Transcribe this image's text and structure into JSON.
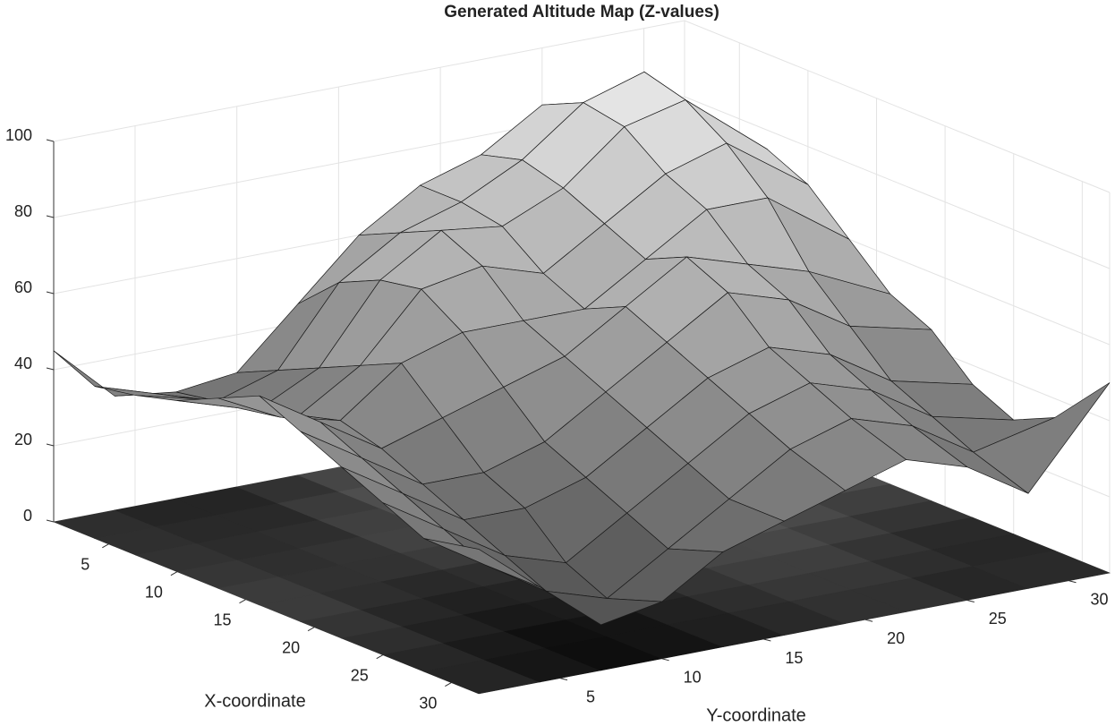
{
  "chart_data": {
    "type": "surface",
    "title": "Generated Altitude Map (Z-values)",
    "x_label": "X-coordinate",
    "y_label": "Y-coordinate",
    "x": [
      1,
      4,
      7,
      10,
      13,
      16,
      19,
      22,
      25,
      28,
      32
    ],
    "y": [
      1,
      4,
      7,
      10,
      13,
      16,
      19,
      22,
      25,
      28,
      32
    ],
    "z": [
      [
        45,
        30,
        28,
        30,
        45,
        60,
        70,
        75,
        85,
        80,
        60
      ],
      [
        40,
        35,
        30,
        35,
        55,
        65,
        70,
        78,
        90,
        95,
        70
      ],
      [
        42,
        38,
        32,
        40,
        60,
        70,
        68,
        75,
        88,
        92,
        75
      ],
      [
        45,
        40,
        35,
        45,
        62,
        65,
        60,
        70,
        80,
        85,
        70
      ],
      [
        50,
        42,
        38,
        50,
        55,
        55,
        55,
        65,
        75,
        75,
        60
      ],
      [
        55,
        45,
        35,
        40,
        45,
        50,
        60,
        70,
        65,
        60,
        50
      ],
      [
        50,
        40,
        30,
        30,
        35,
        45,
        55,
        65,
        60,
        50,
        45
      ],
      [
        45,
        35,
        25,
        25,
        30,
        40,
        50,
        55,
        50,
        40,
        35
      ],
      [
        40,
        30,
        20,
        15,
        25,
        35,
        45,
        50,
        45,
        35,
        30
      ],
      [
        35,
        25,
        15,
        10,
        20,
        30,
        40,
        45,
        40,
        30,
        35
      ],
      [
        38,
        25,
        12,
        15,
        25,
        30,
        35,
        40,
        35,
        25,
        50
      ]
    ],
    "xlim": [
      1,
      32
    ],
    "ylim": [
      1,
      32
    ],
    "zlim": [
      0,
      100
    ],
    "xticks": [
      5,
      10,
      15,
      20,
      25,
      30
    ],
    "yticks": [
      5,
      10,
      15,
      20,
      25,
      30
    ],
    "zticks": [
      0,
      20,
      40,
      60,
      80,
      100
    ],
    "grid": true,
    "colormap": "gray",
    "contour_floor": true
  }
}
